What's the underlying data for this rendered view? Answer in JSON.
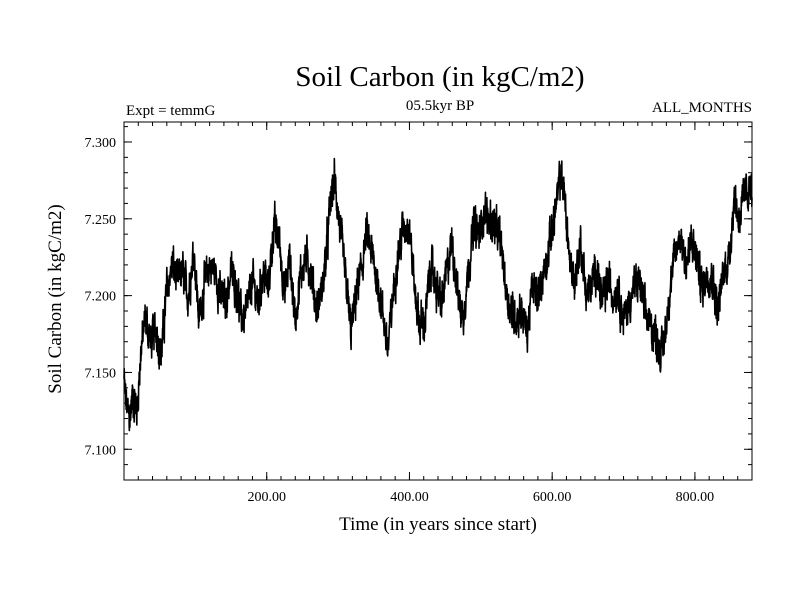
{
  "chart_data": {
    "type": "line",
    "title": "Soil Carbon (in kgC/m2)",
    "subtitle_left": "Expt = temmG",
    "subtitle_center": "05.5kyr BP",
    "subtitle_right": "ALL_MONTHS",
    "xlabel": "Time (in years since start)",
    "ylabel": "Soil Carbon (in kgC/m2)",
    "xlim": [
      0,
      880
    ],
    "ylim": [
      7.08,
      7.313
    ],
    "x_ticks": [
      {
        "value": 200,
        "label": "200.00"
      },
      {
        "value": 400,
        "label": "400.00"
      },
      {
        "value": 600,
        "label": "600.00"
      },
      {
        "value": 800,
        "label": "800.00"
      }
    ],
    "y_ticks": [
      {
        "value": 7.1,
        "label": "7.100"
      },
      {
        "value": 7.15,
        "label": "7.150"
      },
      {
        "value": 7.2,
        "label": "7.200"
      },
      {
        "value": 7.25,
        "label": "7.250"
      },
      {
        "value": 7.3,
        "label": "7.300"
      }
    ],
    "x_minor_step": 20,
    "y_minor_step": 0.01,
    "grid": false,
    "series": [
      {
        "name": "Soil Carbon",
        "color": "#000000",
        "noise": 0.017,
        "x": [
          0,
          3,
          8,
          12,
          18,
          24,
          30,
          38,
          45,
          52,
          60,
          68,
          75,
          82,
          90,
          98,
          105,
          112,
          120,
          128,
          135,
          142,
          150,
          158,
          165,
          172,
          180,
          188,
          195,
          202,
          210,
          218,
          225,
          232,
          240,
          248,
          255,
          262,
          270,
          278,
          285,
          290,
          295,
          300,
          306,
          312,
          318,
          325,
          332,
          340,
          348,
          355,
          362,
          370,
          378,
          385,
          392,
          400,
          408,
          415,
          422,
          430,
          438,
          445,
          452,
          460,
          468,
          475,
          482,
          490,
          498,
          505,
          512,
          520,
          528,
          535,
          542,
          550,
          558,
          565,
          572,
          580,
          588,
          595,
          602,
          608,
          612,
          616,
          620,
          625,
          632,
          640,
          648,
          655,
          662,
          670,
          678,
          685,
          692,
          700,
          708,
          715,
          722,
          730,
          738,
          745,
          752,
          758,
          765,
          772,
          780,
          788,
          795,
          802,
          810,
          818,
          825,
          832,
          840,
          848,
          855,
          862,
          870,
          876,
          880
        ],
        "y": [
          7.145,
          7.13,
          7.12,
          7.135,
          7.125,
          7.165,
          7.185,
          7.17,
          7.18,
          7.16,
          7.205,
          7.22,
          7.21,
          7.215,
          7.2,
          7.23,
          7.185,
          7.205,
          7.22,
          7.215,
          7.2,
          7.195,
          7.215,
          7.205,
          7.185,
          7.19,
          7.21,
          7.195,
          7.215,
          7.205,
          7.245,
          7.235,
          7.2,
          7.225,
          7.185,
          7.215,
          7.225,
          7.215,
          7.19,
          7.205,
          7.235,
          7.265,
          7.275,
          7.255,
          7.23,
          7.205,
          7.175,
          7.2,
          7.215,
          7.24,
          7.225,
          7.21,
          7.19,
          7.165,
          7.205,
          7.23,
          7.245,
          7.245,
          7.2,
          7.18,
          7.185,
          7.22,
          7.205,
          7.195,
          7.215,
          7.235,
          7.2,
          7.185,
          7.215,
          7.245,
          7.24,
          7.255,
          7.25,
          7.245,
          7.235,
          7.205,
          7.19,
          7.185,
          7.19,
          7.175,
          7.205,
          7.2,
          7.215,
          7.23,
          7.25,
          7.265,
          7.28,
          7.27,
          7.25,
          7.22,
          7.21,
          7.235,
          7.2,
          7.205,
          7.22,
          7.195,
          7.21,
          7.2,
          7.205,
          7.185,
          7.195,
          7.205,
          7.21,
          7.19,
          7.18,
          7.175,
          7.16,
          7.175,
          7.205,
          7.225,
          7.24,
          7.22,
          7.235,
          7.225,
          7.205,
          7.215,
          7.21,
          7.19,
          7.215,
          7.225,
          7.265,
          7.25,
          7.265,
          7.27,
          7.265
        ]
      }
    ]
  }
}
